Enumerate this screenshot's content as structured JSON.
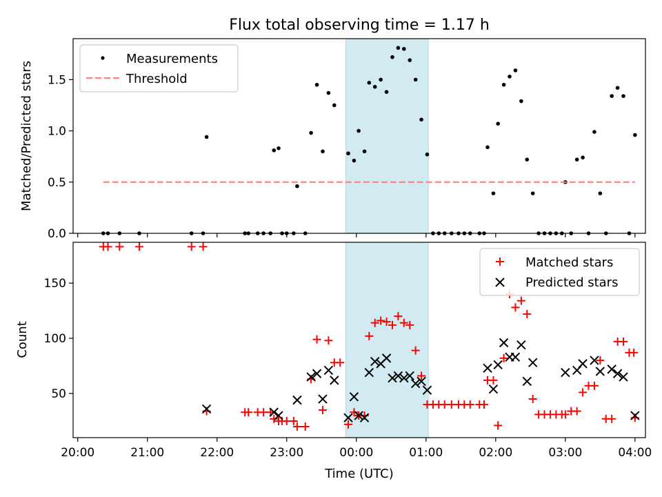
{
  "chart_data": [
    {
      "type": "scatter",
      "title": "Flux total observing time = 1.17 h",
      "xlabel": "",
      "ylabel": "Matched/Predicted stars",
      "xlim": [
        "19:56",
        "04:09"
      ],
      "ylim": [
        0,
        1.9
      ],
      "yticks": [
        0.0,
        0.5,
        1.0,
        1.5
      ],
      "ytick_labels": [
        "0.0",
        "0.5",
        "1.0",
        "1.5"
      ],
      "legend_position": "top-left",
      "shaded_interval": [
        "23:51",
        "01:02"
      ],
      "shade_color": "#add8e6",
      "series": [
        {
          "name": "Measurements",
          "marker": "dot",
          "color": "#000000",
          "points": [
            [
              "20:22",
              0
            ],
            [
              "20:26",
              0
            ],
            [
              "20:36",
              0
            ],
            [
              "20:53",
              0
            ],
            [
              "21:38",
              0
            ],
            [
              "21:48",
              0
            ],
            [
              "21:51",
              0.94
            ],
            [
              "22:24",
              0
            ],
            [
              "22:27",
              0
            ],
            [
              "22:35",
              0
            ],
            [
              "22:40",
              0
            ],
            [
              "22:46",
              0
            ],
            [
              "22:49",
              0.81
            ],
            [
              "22:53",
              0.83
            ],
            [
              "22:56",
              0
            ],
            [
              "23:00",
              0
            ],
            [
              "23:06",
              0
            ],
            [
              "23:09",
              0.46
            ],
            [
              "23:16",
              0
            ],
            [
              "23:21",
              0.98
            ],
            [
              "23:26",
              1.45
            ],
            [
              "23:31",
              0.8
            ],
            [
              "23:36",
              1.37
            ],
            [
              "23:41",
              1.25
            ],
            [
              "23:53",
              0.78
            ],
            [
              "23:58",
              0.71
            ],
            [
              "00:02",
              1.0
            ],
            [
              "00:07",
              0.8
            ],
            [
              "00:11",
              1.47
            ],
            [
              "00:16",
              1.43
            ],
            [
              "00:21",
              1.5
            ],
            [
              "00:26",
              1.38
            ],
            [
              "00:31",
              1.72
            ],
            [
              "00:36",
              1.81
            ],
            [
              "00:41",
              1.8
            ],
            [
              "00:46",
              1.69
            ],
            [
              "00:51",
              1.5
            ],
            [
              "00:56",
              1.11
            ],
            [
              "01:01",
              0.77
            ],
            [
              "01:06",
              0
            ],
            [
              "01:11",
              0
            ],
            [
              "01:16",
              0
            ],
            [
              "01:22",
              0
            ],
            [
              "01:28",
              0
            ],
            [
              "01:33",
              0
            ],
            [
              "01:38",
              0
            ],
            [
              "01:46",
              0
            ],
            [
              "01:50",
              0
            ],
            [
              "01:53",
              0.84
            ],
            [
              "01:58",
              0.39
            ],
            [
              "02:02",
              1.07
            ],
            [
              "02:07",
              1.45
            ],
            [
              "02:12",
              1.53
            ],
            [
              "02:17",
              1.59
            ],
            [
              "02:22",
              1.29
            ],
            [
              "02:27",
              0.72
            ],
            [
              "02:32",
              0.39
            ],
            [
              "02:37",
              0
            ],
            [
              "02:42",
              0
            ],
            [
              "02:47",
              0
            ],
            [
              "02:52",
              0
            ],
            [
              "02:57",
              0
            ],
            [
              "03:00",
              0.5
            ],
            [
              "03:05",
              0
            ],
            [
              "03:10",
              0.72
            ],
            [
              "03:15",
              0.74
            ],
            [
              "03:20",
              0
            ],
            [
              "03:25",
              0.99
            ],
            [
              "03:30",
              0.39
            ],
            [
              "03:35",
              0
            ],
            [
              "03:40",
              1.34
            ],
            [
              "03:45",
              1.42
            ],
            [
              "03:50",
              1.34
            ],
            [
              "03:55",
              0
            ],
            [
              "04:00",
              0.96
            ]
          ]
        },
        {
          "name": "Threshold",
          "marker": "dashed-line",
          "color": "#ff7f7f",
          "points": [
            [
              "20:22",
              0.5
            ],
            [
              "04:00",
              0.5
            ]
          ]
        }
      ]
    },
    {
      "type": "scatter",
      "title": "",
      "xlabel": "Time (UTC)",
      "ylabel": "Count",
      "xlim": [
        "19:56",
        "04:09"
      ],
      "ylim": [
        10,
        187
      ],
      "yticks": [
        50,
        100,
        150
      ],
      "ytick_labels": [
        "50",
        "100",
        "150"
      ],
      "xticks": [
        "20:00",
        "21:00",
        "22:00",
        "23:00",
        "00:00",
        "01:00",
        "02:00",
        "03:00",
        "04:00"
      ],
      "xtick_labels": [
        "20:00",
        "21:00",
        "22:00",
        "23:00",
        "00:00",
        "01:00",
        "02:00",
        "03:00",
        "04:00"
      ],
      "legend_position": "top-right",
      "shaded_interval": [
        "23:51",
        "01:02"
      ],
      "shade_color": "#add8e6",
      "series": [
        {
          "name": "Matched stars",
          "marker": "plus",
          "color": "#ff0000",
          "points": [
            [
              "20:22",
              183
            ],
            [
              "20:26",
              183
            ],
            [
              "20:36",
              183
            ],
            [
              "20:53",
              183
            ],
            [
              "21:38",
              183
            ],
            [
              "21:48",
              183
            ],
            [
              "21:51",
              34
            ],
            [
              "22:24",
              33
            ],
            [
              "22:27",
              33
            ],
            [
              "22:35",
              33
            ],
            [
              "22:40",
              33
            ],
            [
              "22:46",
              33
            ],
            [
              "22:49",
              27
            ],
            [
              "22:53",
              25
            ],
            [
              "22:56",
              25
            ],
            [
              "23:00",
              25
            ],
            [
              "23:06",
              25
            ],
            [
              "23:09",
              20
            ],
            [
              "23:16",
              20
            ],
            [
              "23:21",
              63
            ],
            [
              "23:26",
              99
            ],
            [
              "23:31",
              35
            ],
            [
              "23:36",
              98
            ],
            [
              "23:41",
              78
            ],
            [
              "23:46",
              78
            ],
            [
              "23:53",
              22
            ],
            [
              "23:58",
              33
            ],
            [
              "00:02",
              30
            ],
            [
              "00:07",
              30
            ],
            [
              "00:11",
              102
            ],
            [
              "00:16",
              114
            ],
            [
              "00:21",
              116
            ],
            [
              "00:26",
              115
            ],
            [
              "00:31",
              112
            ],
            [
              "00:36",
              120
            ],
            [
              "00:41",
              114
            ],
            [
              "00:46",
              112
            ],
            [
              "00:51",
              89
            ],
            [
              "00:56",
              66
            ],
            [
              "01:01",
              40
            ],
            [
              "01:06",
              40
            ],
            [
              "01:11",
              40
            ],
            [
              "01:16",
              40
            ],
            [
              "01:22",
              40
            ],
            [
              "01:28",
              40
            ],
            [
              "01:33",
              40
            ],
            [
              "01:38",
              40
            ],
            [
              "01:46",
              40
            ],
            [
              "01:50",
              40
            ],
            [
              "01:53",
              62
            ],
            [
              "01:58",
              62
            ],
            [
              "02:02",
              21
            ],
            [
              "02:07",
              82
            ],
            [
              "02:12",
              140
            ],
            [
              "02:17",
              128
            ],
            [
              "02:22",
              134
            ],
            [
              "02:27",
              122
            ],
            [
              "02:32",
              45
            ],
            [
              "02:37",
              31
            ],
            [
              "02:42",
              31
            ],
            [
              "02:47",
              31
            ],
            [
              "02:52",
              31
            ],
            [
              "02:57",
              31
            ],
            [
              "03:00",
              31
            ],
            [
              "03:05",
              34
            ],
            [
              "03:10",
              34
            ],
            [
              "03:15",
              51
            ],
            [
              "03:20",
              57
            ],
            [
              "03:25",
              57
            ],
            [
              "03:30",
              80
            ],
            [
              "03:35",
              27
            ],
            [
              "03:40",
              27
            ],
            [
              "03:45",
              97
            ],
            [
              "03:50",
              97
            ],
            [
              "03:55",
              87
            ],
            [
              "03:59",
              87
            ],
            [
              "04:00",
              28
            ]
          ]
        },
        {
          "name": "Predicted stars",
          "marker": "x",
          "color": "#000000",
          "points": [
            [
              "21:51",
              36
            ],
            [
              "22:49",
              33
            ],
            [
              "22:53",
              30
            ],
            [
              "23:09",
              44
            ],
            [
              "23:21",
              65
            ],
            [
              "23:26",
              68
            ],
            [
              "23:31",
              45
            ],
            [
              "23:36",
              71
            ],
            [
              "23:41",
              62
            ],
            [
              "23:53",
              28
            ],
            [
              "23:58",
              47
            ],
            [
              "00:02",
              30
            ],
            [
              "00:07",
              28
            ],
            [
              "00:11",
              69
            ],
            [
              "00:16",
              79
            ],
            [
              "00:21",
              77
            ],
            [
              "00:26",
              82
            ],
            [
              "00:31",
              64
            ],
            [
              "00:36",
              66
            ],
            [
              "00:41",
              64
            ],
            [
              "00:46",
              66
            ],
            [
              "00:51",
              59
            ],
            [
              "00:56",
              61
            ],
            [
              "01:01",
              53
            ],
            [
              "01:53",
              73
            ],
            [
              "01:58",
              54
            ],
            [
              "02:02",
              76
            ],
            [
              "02:07",
              96
            ],
            [
              "02:12",
              83
            ],
            [
              "02:17",
              83
            ],
            [
              "02:22",
              94
            ],
            [
              "02:27",
              61
            ],
            [
              "02:32",
              78
            ],
            [
              "03:00",
              69
            ],
            [
              "03:10",
              71
            ],
            [
              "03:15",
              77
            ],
            [
              "03:25",
              80
            ],
            [
              "03:30",
              70
            ],
            [
              "03:40",
              72
            ],
            [
              "03:45",
              68
            ],
            [
              "03:50",
              65
            ],
            [
              "04:00",
              30
            ]
          ]
        }
      ]
    }
  ]
}
